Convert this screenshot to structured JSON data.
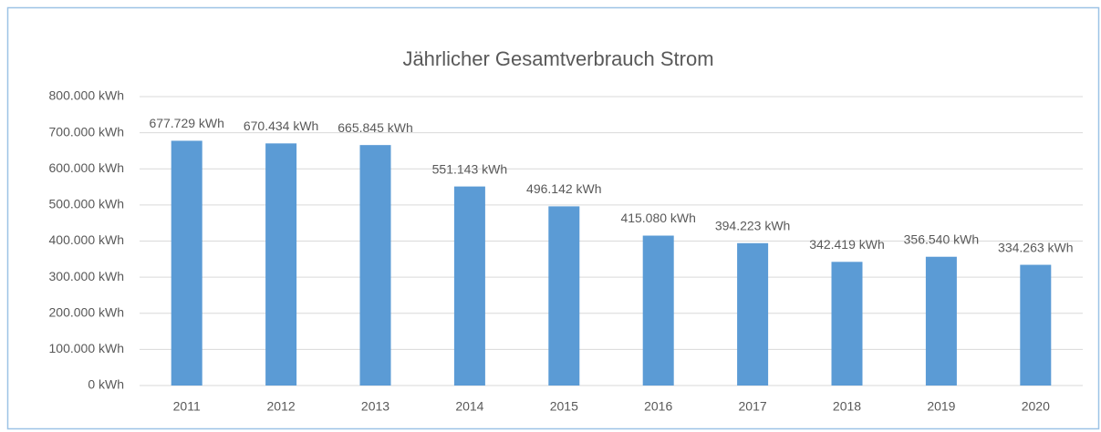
{
  "chart_data": {
    "type": "bar",
    "title": "Jährlicher Gesamtverbrauch Strom",
    "categories": [
      "2011",
      "2012",
      "2013",
      "2014",
      "2015",
      "2016",
      "2017",
      "2018",
      "2019",
      "2020"
    ],
    "values": [
      677729,
      670434,
      665845,
      551143,
      496142,
      415080,
      394223,
      342419,
      356540,
      334263
    ],
    "value_labels": [
      "677.729 kWh",
      "670.434 kWh",
      "665.845 kWh",
      "551.143 kWh",
      "496.142 kWh",
      "415.080 kWh",
      "394.223 kWh",
      "342.419 kWh",
      "356.540 kWh",
      "334.263 kWh"
    ],
    "color": "#5b9bd5",
    "ylim": [
      0,
      800000
    ],
    "yticks": [
      {
        "value": 0,
        "label": "0 kWh"
      },
      {
        "value": 100000,
        "label": "100.000 kWh"
      },
      {
        "value": 200000,
        "label": "200.000 kWh"
      },
      {
        "value": 300000,
        "label": "300.000 kWh"
      },
      {
        "value": 400000,
        "label": "400.000 kWh"
      },
      {
        "value": 500000,
        "label": "500.000 kWh"
      },
      {
        "value": 600000,
        "label": "600.000 kWh"
      },
      {
        "value": 700000,
        "label": "700.000 kWh"
      },
      {
        "value": 800000,
        "label": "800.000 kWh"
      }
    ],
    "grid": true
  }
}
